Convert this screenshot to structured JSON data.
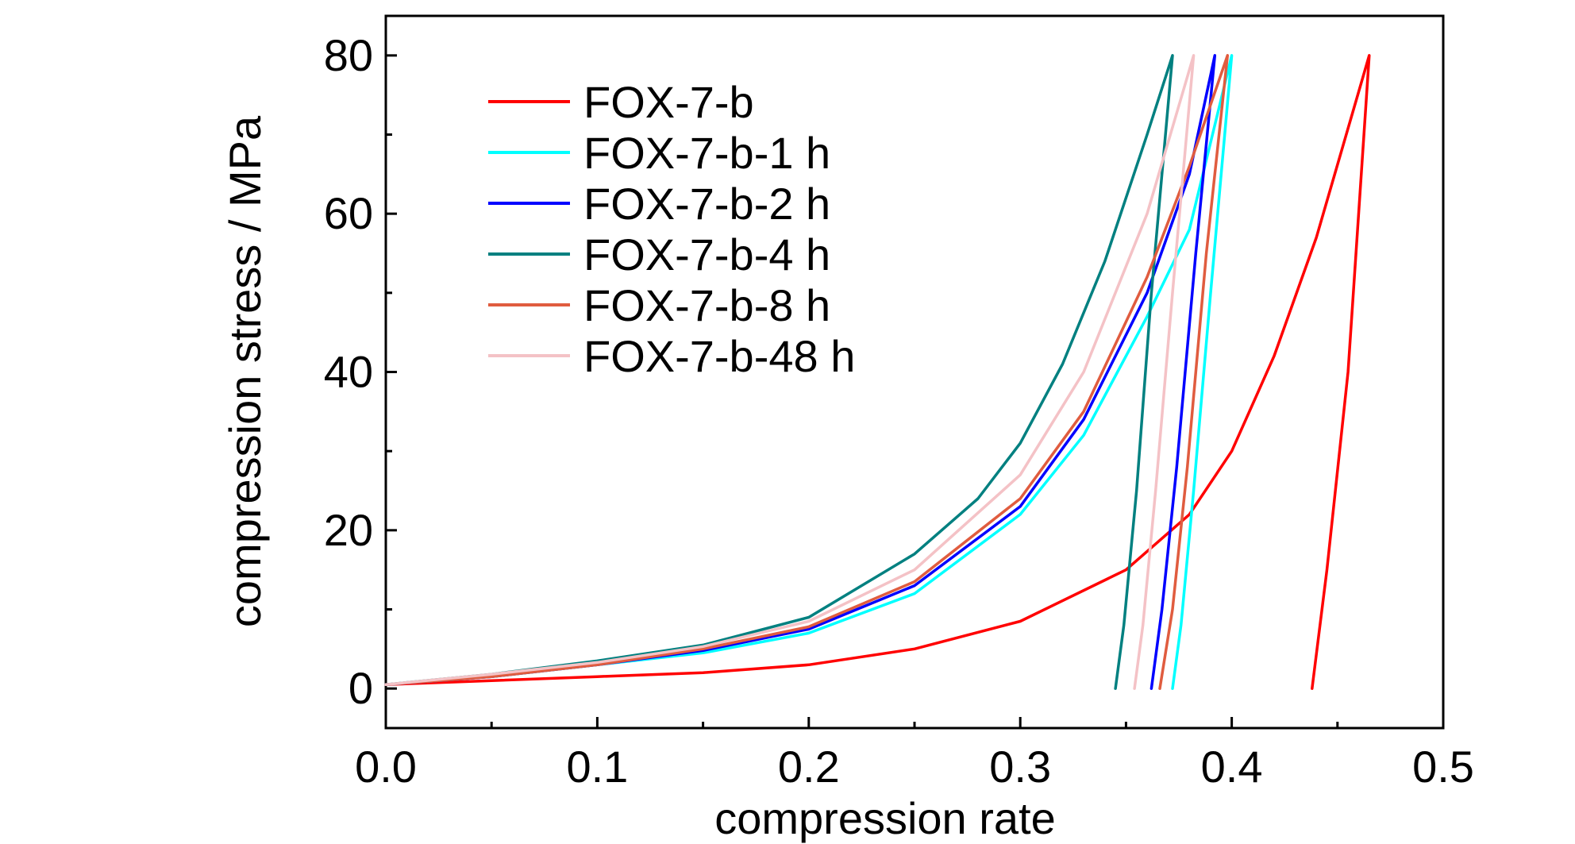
{
  "chart_data": {
    "type": "line",
    "title": "",
    "xlabel": "compression rate",
    "ylabel": "compression stress / MPa",
    "xlim": [
      0.0,
      0.5
    ],
    "ylim": [
      -5,
      85
    ],
    "xticks": [
      0.0,
      0.1,
      0.2,
      0.3,
      0.4,
      0.5
    ],
    "xtick_labels": [
      "0.0",
      "0.1",
      "0.2",
      "0.3",
      "0.4",
      "0.5"
    ],
    "yticks": [
      0,
      20,
      40,
      60,
      80
    ],
    "ytick_labels": [
      "0",
      "20",
      "40",
      "60",
      "80"
    ],
    "grid": false,
    "legend_position": "top-left",
    "series": [
      {
        "name": "FOX-7-b",
        "color": "#ff0000",
        "x": [
          0.0,
          0.05,
          0.1,
          0.15,
          0.2,
          0.25,
          0.3,
          0.35,
          0.38,
          0.4,
          0.42,
          0.44,
          0.465,
          0.455,
          0.445,
          0.438
        ],
        "y": [
          0.5,
          1.0,
          1.5,
          2.0,
          3.0,
          5.0,
          8.5,
          15.0,
          22.0,
          30.0,
          42.0,
          57.0,
          80.0,
          40.0,
          15.0,
          0.0
        ]
      },
      {
        "name": "FOX-7-b-1 h",
        "color": "#00ffff",
        "x": [
          0.0,
          0.05,
          0.1,
          0.15,
          0.2,
          0.25,
          0.3,
          0.33,
          0.36,
          0.38,
          0.4,
          0.39,
          0.382,
          0.376,
          0.372
        ],
        "y": [
          0.5,
          1.5,
          3.0,
          4.5,
          7.0,
          12.0,
          22.0,
          32.0,
          47.0,
          58.0,
          80.0,
          50.0,
          25.0,
          8.0,
          0.0
        ]
      },
      {
        "name": "FOX-7-b-2 h",
        "color": "#0000ff",
        "x": [
          0.0,
          0.05,
          0.1,
          0.15,
          0.2,
          0.25,
          0.3,
          0.33,
          0.36,
          0.38,
          0.392,
          0.383,
          0.374,
          0.367,
          0.362
        ],
        "y": [
          0.5,
          1.5,
          3.0,
          4.8,
          7.5,
          13.0,
          23.0,
          34.0,
          50.0,
          65.0,
          80.0,
          55.0,
          28.0,
          10.0,
          0.0
        ]
      },
      {
        "name": "FOX-7-b-4 h",
        "color": "#008080",
        "x": [
          0.0,
          0.05,
          0.1,
          0.15,
          0.2,
          0.25,
          0.28,
          0.3,
          0.32,
          0.34,
          0.36,
          0.372,
          0.362,
          0.355,
          0.349,
          0.345
        ],
        "y": [
          0.5,
          1.8,
          3.5,
          5.5,
          9.0,
          17.0,
          24.0,
          31.0,
          41.0,
          54.0,
          70.0,
          80.0,
          50.0,
          25.0,
          8.0,
          0.0
        ]
      },
      {
        "name": "FOX-7-b-8 h",
        "color": "#e05c3f",
        "x": [
          0.0,
          0.05,
          0.1,
          0.15,
          0.2,
          0.25,
          0.3,
          0.33,
          0.36,
          0.38,
          0.398,
          0.388,
          0.379,
          0.372,
          0.366
        ],
        "y": [
          0.5,
          1.5,
          3.0,
          5.0,
          7.8,
          13.5,
          24.0,
          35.0,
          52.0,
          66.0,
          80.0,
          55.0,
          28.0,
          10.0,
          0.0
        ]
      },
      {
        "name": "FOX-7-b-48 h",
        "color": "#f4c2c6",
        "x": [
          0.0,
          0.05,
          0.1,
          0.15,
          0.2,
          0.25,
          0.3,
          0.33,
          0.36,
          0.382,
          0.372,
          0.364,
          0.358,
          0.354
        ],
        "y": [
          0.5,
          1.8,
          3.3,
          5.3,
          8.5,
          15.0,
          27.0,
          40.0,
          60.0,
          80.0,
          50.0,
          25.0,
          8.0,
          0.0
        ]
      }
    ]
  }
}
